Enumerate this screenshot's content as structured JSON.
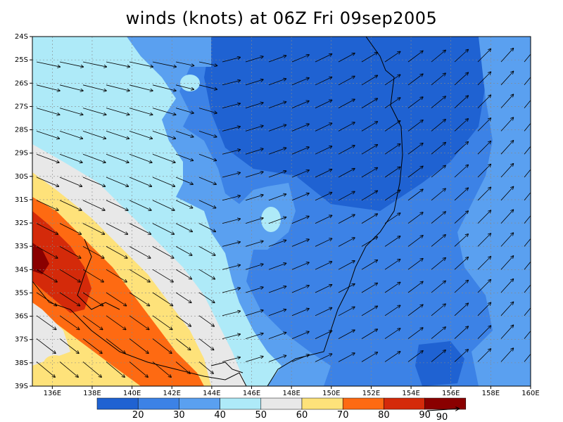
{
  "title": "winds (knots) at 06Z Fri 09sep2005",
  "map": {
    "lon_range": [
      135,
      160
    ],
    "lat_range": [
      -39,
      -24
    ],
    "lon_ticks": [
      "136E",
      "138E",
      "140E",
      "142E",
      "144E",
      "146E",
      "148E",
      "150E",
      "152E",
      "154E",
      "156E",
      "158E",
      "160E"
    ],
    "lat_ticks": [
      "24S",
      "25S",
      "26S",
      "27S",
      "28S",
      "29S",
      "30S",
      "31S",
      "32S",
      "33S",
      "34S",
      "35S",
      "36S",
      "37S",
      "38S",
      "39S"
    ],
    "grid": true
  },
  "colorbar": {
    "levels": [
      "20",
      "30",
      "40",
      "50",
      "60",
      "70",
      "80",
      "90"
    ],
    "colors": [
      "#1f62d2",
      "#3c82e6",
      "#5aa0f0",
      "#aeeaf8",
      "#e8e8e8",
      "#fee27a",
      "#fe6a12",
      "#d42a0a",
      "#8a0000"
    ],
    "reference_vector": "90"
  }
}
